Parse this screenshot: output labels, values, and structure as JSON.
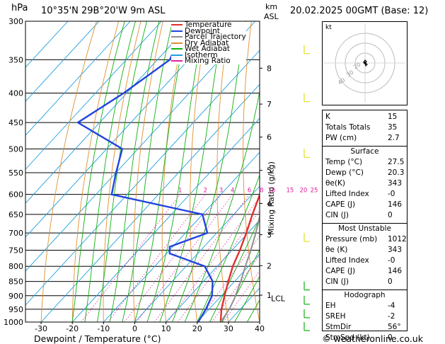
{
  "header": {
    "pressure_unit": "hPa",
    "location": "10°35'N 29B°20'W 9m ASL",
    "height_unit_top": "km",
    "height_unit_bottom": "ASL",
    "datetime": "20.02.2025 00GMT (Base: 12)"
  },
  "footer": {
    "xlabel": "Dewpoint / Temperature (°C)",
    "credit": "© weatheronline.co.uk"
  },
  "legend": {
    "items": [
      {
        "label": "Temperature",
        "color": "#e03030"
      },
      {
        "label": "Dewpoint",
        "color": "#2244dd"
      },
      {
        "label": "Parcel Trajectory",
        "color": "#909090"
      },
      {
        "label": "Dry Adiabat",
        "color": "#e09030"
      },
      {
        "label": "Wet Adiabat",
        "color": "#10b010"
      },
      {
        "label": "Isotherm",
        "color": "#20a0e0"
      },
      {
        "label": "Mixing Ratio",
        "color": "#e020a0"
      }
    ]
  },
  "mixing_ratio_axis_label": "Mixing Ratio (g/kg)",
  "hodograph": {
    "unit": "kt",
    "ring_labels": [
      "20",
      "30",
      "40"
    ]
  },
  "indices": {
    "rows": [
      {
        "key": "K",
        "value": "15"
      },
      {
        "key": "Totals Totals",
        "value": "35"
      },
      {
        "key": "PW (cm)",
        "value": "2.7"
      }
    ]
  },
  "surface": {
    "title": "Surface",
    "rows": [
      {
        "key": "Temp (°C)",
        "value": "27.5"
      },
      {
        "key": "Dewp (°C)",
        "value": "20.3"
      },
      {
        "key": "θe(K)",
        "value": "343"
      },
      {
        "key": "Lifted Index",
        "value": "-0"
      },
      {
        "key": "CAPE (J)",
        "value": "146"
      },
      {
        "key": "CIN (J)",
        "value": "0"
      }
    ]
  },
  "most_unstable": {
    "title": "Most Unstable",
    "rows": [
      {
        "key": "Pressure (mb)",
        "value": "1012"
      },
      {
        "key": "θe (K)",
        "value": "343"
      },
      {
        "key": "Lifted Index",
        "value": "-0"
      },
      {
        "key": "CAPE (J)",
        "value": "146"
      },
      {
        "key": "CIN (J)",
        "value": "0"
      }
    ]
  },
  "hodograph_table": {
    "title": "Hodograph",
    "rows": [
      {
        "key": "EH",
        "value": "-4"
      },
      {
        "key": "SREH",
        "value": "-2"
      },
      {
        "key": "StmDir",
        "value": "56°"
      },
      {
        "key": "StmSpd (kt)",
        "value": "0"
      }
    ]
  },
  "chart_data": {
    "type": "line",
    "title": "",
    "xlabel": "Dewpoint / Temperature (°C)",
    "ylabel": "hPa",
    "xlim": [
      -35,
      40
    ],
    "x_ticks": [
      -30,
      -20,
      -10,
      0,
      10,
      20,
      30,
      40
    ],
    "x_tick_labels": [
      "-30",
      "-20",
      "-10",
      "0",
      "10",
      "20",
      "30",
      "40"
    ],
    "pressure_levels": [
      300,
      350,
      400,
      450,
      500,
      550,
      600,
      650,
      700,
      750,
      800,
      850,
      900,
      950,
      1000
    ],
    "pressure_tick_labels": [
      "300",
      "350",
      "400",
      "450",
      "500",
      "550",
      "600",
      "650",
      "700",
      "750",
      "800",
      "850",
      "900",
      "950",
      "1000"
    ],
    "height_km": [
      {
        "km": "8",
        "p": 362
      },
      {
        "km": "7",
        "p": 418
      },
      {
        "km": "6",
        "p": 477
      },
      {
        "km": "5",
        "p": 545
      },
      {
        "km": "4",
        "p": 622
      },
      {
        "km": "3",
        "p": 705
      },
      {
        "km": "2",
        "p": 798
      },
      {
        "km": "1",
        "p": 898
      }
    ],
    "lcl_label": "LCL",
    "lcl_p": 910,
    "mixing_ratio_labels": [
      {
        "label": "1",
        "g": 1
      },
      {
        "label": "2",
        "g": 2
      },
      {
        "label": "3",
        "g": 3
      },
      {
        "label": "4",
        "g": 4
      },
      {
        "label": "6",
        "g": 6
      },
      {
        "label": "8",
        "g": 8
      },
      {
        "label": "10",
        "g": 10
      },
      {
        "label": "15",
        "g": 15
      },
      {
        "label": "20",
        "g": 20
      },
      {
        "label": "25",
        "g": 25
      }
    ],
    "series": [
      {
        "name": "Temperature",
        "color": "#e03030",
        "points": [
          [
            1000,
            27.5
          ],
          [
            950,
            24
          ],
          [
            900,
            21
          ],
          [
            850,
            18
          ],
          [
            800,
            15
          ],
          [
            750,
            12.5
          ],
          [
            700,
            9.5
          ],
          [
            650,
            6
          ],
          [
            600,
            2.5
          ],
          [
            550,
            -2
          ],
          [
            500,
            -6.5
          ],
          [
            450,
            -12
          ],
          [
            400,
            -17
          ],
          [
            370,
            -22
          ]
        ]
      },
      {
        "name": "Dewpoint",
        "color": "#2244dd",
        "points": [
          [
            1000,
            20.3
          ],
          [
            950,
            19
          ],
          [
            900,
            17
          ],
          [
            850,
            13
          ],
          [
            800,
            6
          ],
          [
            760,
            -9
          ],
          [
            740,
            -11
          ],
          [
            700,
            -3
          ],
          [
            650,
            -10
          ],
          [
            600,
            -45
          ],
          [
            550,
            -50
          ],
          [
            500,
            -55
          ],
          [
            450,
            -77
          ],
          [
            400,
            -71
          ],
          [
            350,
            -66
          ],
          [
            300,
            -72
          ]
        ]
      },
      {
        "name": "Parcel Trajectory",
        "color": "#909090",
        "points": [
          [
            1000,
            27.5
          ],
          [
            950,
            26.5
          ],
          [
            910,
            25
          ],
          [
            850,
            22
          ],
          [
            800,
            19
          ],
          [
            750,
            16
          ],
          [
            700,
            12.5
          ],
          [
            650,
            8.5
          ],
          [
            600,
            4
          ],
          [
            550,
            -0.5
          ],
          [
            500,
            -6
          ],
          [
            450,
            -12.5
          ],
          [
            400,
            -19
          ],
          [
            350,
            -27
          ],
          [
            300,
            -37
          ]
        ]
      }
    ]
  }
}
